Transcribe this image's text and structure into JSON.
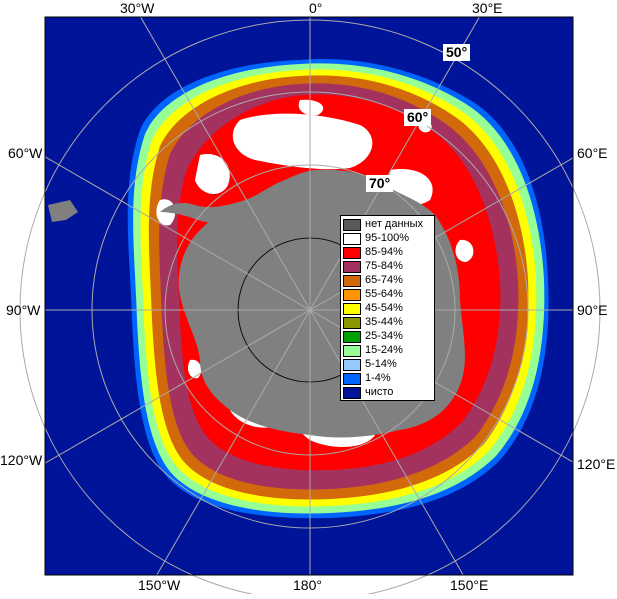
{
  "map": {
    "colors": {
      "ocean": "#00149a",
      "land": "#808080",
      "land_dark": "#5a5a5a",
      "grid": "#aaaaaa",
      "frame": "#000000"
    },
    "longitude_labels": {
      "top_30w": "30°W",
      "top_0": "0°",
      "top_30e": "30°E",
      "left_60w": "60°W",
      "right_60e": "60°E",
      "left_90w": "90°W",
      "right_90e": "90°E",
      "left_120w": "120°W",
      "right_120e": "120°E",
      "bottom_150w": "150°W",
      "bottom_180": "180°",
      "bottom_150e": "150°E"
    },
    "latitude_labels": {
      "lat_50": "50°",
      "lat_60": "60°",
      "lat_70": "70°"
    }
  },
  "legend": {
    "items": [
      {
        "label": "нет данных",
        "color": "#595959"
      },
      {
        "label": "95-100%",
        "color": "#ffffff"
      },
      {
        "label": "85-94%",
        "color": "#ff0000"
      },
      {
        "label": "75-84%",
        "color": "#a3325e"
      },
      {
        "label": "65-74%",
        "color": "#d2690a"
      },
      {
        "label": "55-64%",
        "color": "#ff9600"
      },
      {
        "label": "45-54%",
        "color": "#ffff00"
      },
      {
        "label": "35-44%",
        "color": "#8c9600"
      },
      {
        "label": "25-34%",
        "color": "#00a000"
      },
      {
        "label": "15-24%",
        "color": "#96ff96"
      },
      {
        "label": "5-14%",
        "color": "#96c8ff"
      },
      {
        "label": "1-4%",
        "color": "#0064ff"
      },
      {
        "label": "чисто",
        "color": "#00149a"
      }
    ]
  }
}
